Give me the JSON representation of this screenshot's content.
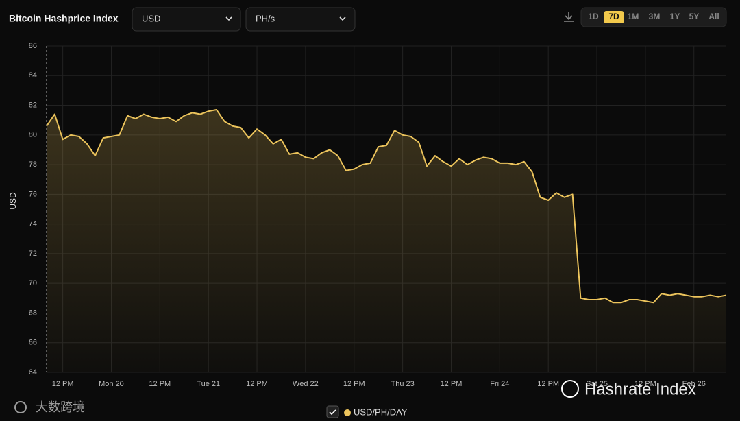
{
  "header": {
    "title": "Bitcoin Hashprice Index",
    "currency": "USD",
    "unit": "PH/s",
    "ranges": [
      "1D",
      "7D",
      "1M",
      "3M",
      "1Y",
      "5Y",
      "All"
    ],
    "selected_range": "7D"
  },
  "chart_data": {
    "type": "line",
    "ylabel": "USD",
    "categories": [
      null,
      null,
      "12 PM",
      null,
      null,
      null,
      null,
      null,
      "Mon 20",
      null,
      null,
      null,
      null,
      null,
      "12 PM",
      null,
      null,
      null,
      null,
      null,
      "Tue 21",
      null,
      null,
      null,
      null,
      null,
      "12 PM",
      null,
      null,
      null,
      null,
      null,
      "Wed 22",
      null,
      null,
      null,
      null,
      null,
      "12 PM",
      null,
      null,
      null,
      null,
      null,
      "Thu 23",
      null,
      null,
      null,
      null,
      null,
      "12 PM",
      null,
      null,
      null,
      null,
      null,
      "Fri 24",
      null,
      null,
      null,
      null,
      null,
      "12 PM",
      null,
      null,
      null,
      null,
      null,
      "Sat 25",
      null,
      null,
      null,
      null,
      null,
      "12 PM",
      null,
      null,
      null,
      null,
      null,
      "Feb 26",
      null,
      null,
      null,
      null
    ],
    "series": [
      {
        "name": "USD/PH/DAY",
        "color": "#ecc45c",
        "values": [
          80.6,
          81.4,
          79.7,
          80.0,
          79.9,
          79.4,
          78.6,
          79.8,
          79.9,
          80.0,
          81.3,
          81.1,
          81.4,
          81.2,
          81.1,
          81.2,
          80.9,
          81.3,
          81.5,
          81.4,
          81.6,
          81.7,
          80.9,
          80.6,
          80.5,
          79.8,
          80.4,
          80.0,
          79.4,
          79.7,
          78.7,
          78.8,
          78.5,
          78.4,
          78.8,
          79.0,
          78.6,
          77.6,
          77.7,
          78.0,
          78.1,
          79.2,
          79.3,
          80.3,
          80.0,
          79.9,
          79.5,
          77.9,
          78.6,
          78.2,
          77.9,
          78.4,
          78.0,
          78.3,
          78.5,
          78.4,
          78.1,
          78.1,
          78.0,
          78.2,
          77.5,
          75.8,
          75.6,
          76.1,
          75.8,
          76.0,
          69.0,
          68.9,
          68.9,
          69.0,
          68.7,
          68.7,
          68.9,
          68.9,
          68.8,
          68.7,
          69.3,
          69.2,
          69.3,
          69.2,
          69.1,
          69.1,
          69.2,
          69.1,
          69.2
        ]
      }
    ],
    "ylim": [
      64,
      86
    ],
    "yticks": [
      64,
      66,
      68,
      70,
      72,
      74,
      76,
      78,
      80,
      82,
      84,
      86
    ],
    "grid": true
  },
  "watermarks": [
    "Hashrate Index",
    "大数跨境"
  ]
}
